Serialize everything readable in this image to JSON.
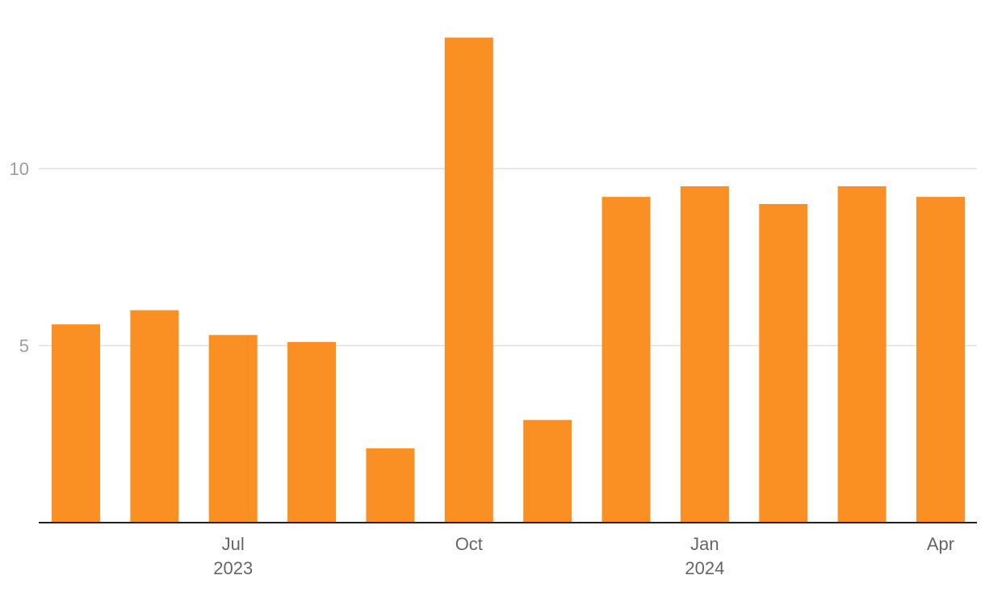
{
  "chart_data": {
    "type": "bar",
    "x": [
      "2023-05",
      "2023-06",
      "2023-07",
      "2023-08",
      "2023-09",
      "2023-10",
      "2023-11",
      "2023-12",
      "2024-01",
      "2024-02",
      "2024-03",
      "2024-04"
    ],
    "values": [
      5.6,
      6.0,
      5.3,
      5.1,
      2.1,
      13.7,
      2.9,
      9.2,
      9.5,
      9.0,
      9.5,
      9.2
    ],
    "ylim": [
      0,
      14
    ],
    "y_ticks": [
      {
        "value": 5,
        "label": "5"
      },
      {
        "value": 10,
        "label": "10"
      }
    ],
    "x_ticks": [
      {
        "month": "2023-07",
        "label": "Jul",
        "year_label": "2023"
      },
      {
        "month": "2023-10",
        "label": "Oct",
        "year_label": ""
      },
      {
        "month": "2024-01",
        "label": "Jan",
        "year_label": "2024"
      },
      {
        "month": "2024-04",
        "label": "Apr",
        "year_label": ""
      }
    ],
    "bar_color": "#fa8f24",
    "grid": true,
    "legend": false
  }
}
